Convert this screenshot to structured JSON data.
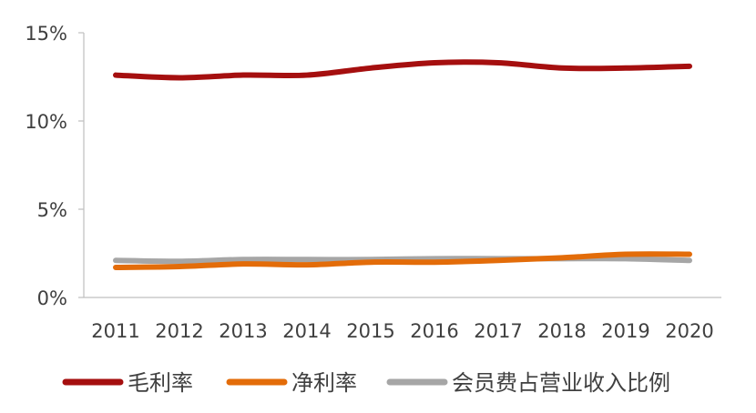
{
  "chart_data": {
    "type": "line",
    "categories": [
      "2011",
      "2012",
      "2013",
      "2014",
      "2015",
      "2016",
      "2017",
      "2018",
      "2019",
      "2020"
    ],
    "series": [
      {
        "name": "毛利率",
        "color": "#A50F0F",
        "values": [
          12.6,
          12.45,
          12.6,
          12.6,
          13.0,
          13.3,
          13.3,
          13.0,
          13.0,
          13.1
        ]
      },
      {
        "name": "净利率",
        "color": "#E36C09",
        "values": [
          1.7,
          1.75,
          1.9,
          1.85,
          2.0,
          2.0,
          2.1,
          2.25,
          2.45,
          2.45
        ]
      },
      {
        "name": "会员费占营业收入比例",
        "color": "#A6A6A6",
        "values": [
          2.1,
          2.05,
          2.15,
          2.15,
          2.15,
          2.2,
          2.2,
          2.2,
          2.2,
          2.1
        ]
      }
    ],
    "yticks": [
      "0%",
      "5%",
      "10%",
      "15%"
    ],
    "ylim": [
      0,
      15
    ],
    "legend_position": "bottom",
    "grid": false
  }
}
